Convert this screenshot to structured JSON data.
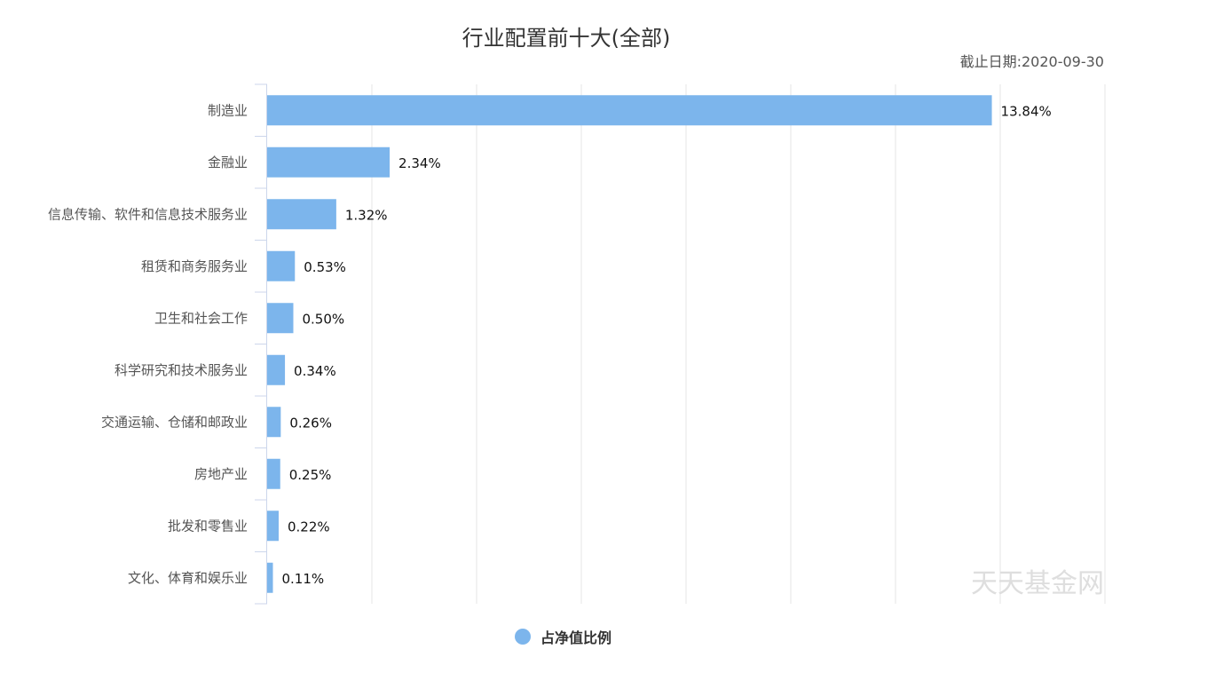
{
  "chart_data": {
    "type": "bar",
    "orientation": "horizontal",
    "title": "行业配置前十大(全部)",
    "subtitle": "截止日期:2020-09-30",
    "categories": [
      "制造业",
      "金融业",
      "信息传输、软件和信息技术服务业",
      "租赁和商务服务业",
      "卫生和社会工作",
      "科学研究和技术服务业",
      "交通运输、仓储和邮政业",
      "房地产业",
      "批发和零售业",
      "文化、体育和娱乐业"
    ],
    "series": [
      {
        "name": "占净值比例",
        "values": [
          13.84,
          2.34,
          1.32,
          0.53,
          0.5,
          0.34,
          0.26,
          0.25,
          0.22,
          0.11
        ],
        "labels": [
          "13.84%",
          "2.34%",
          "1.32%",
          "0.53%",
          "0.50%",
          "0.34%",
          "0.26%",
          "0.25%",
          "0.22%",
          "0.11%"
        ]
      }
    ],
    "xlim": [
      0,
      16
    ],
    "grid": true,
    "legend": "bottom-center",
    "bar_color": "#7cb5ec",
    "watermark": "天天基金网"
  }
}
